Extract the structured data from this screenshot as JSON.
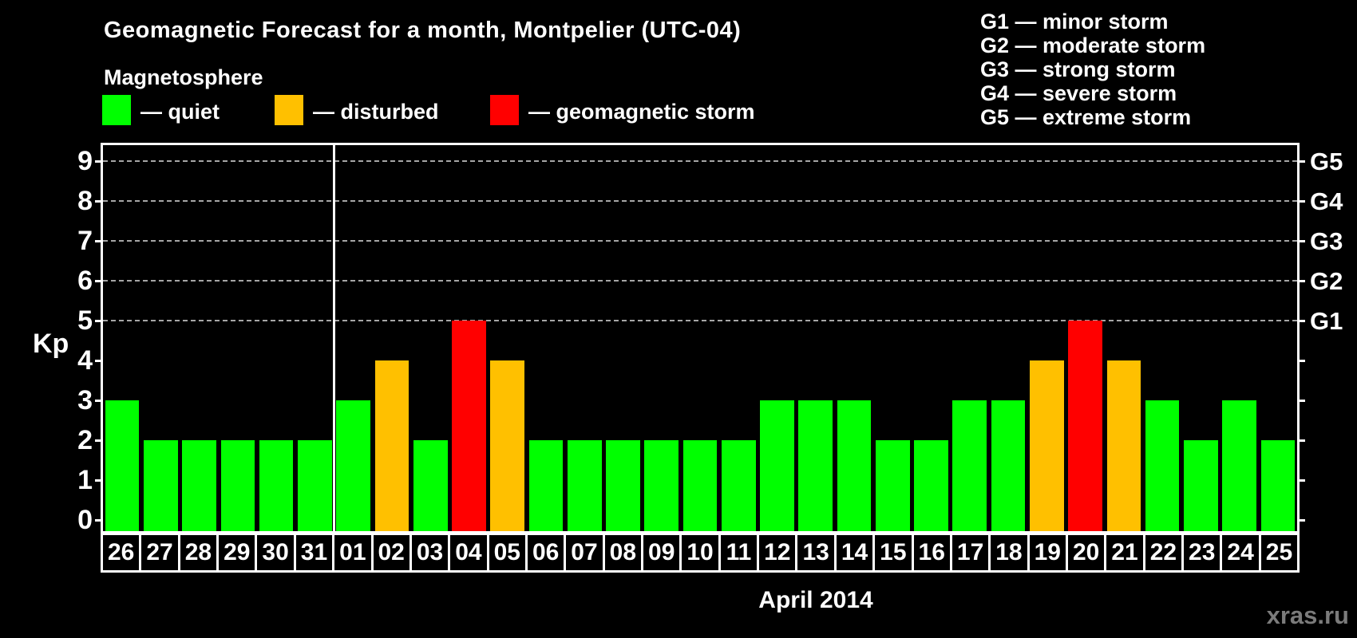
{
  "title": "Geomagnetic Forecast for a month, Montpelier (UTC-04)",
  "subtitle": "Magnetosphere",
  "legend": {
    "items": [
      {
        "label": "— quiet",
        "color": "#00ff00",
        "status": "quiet"
      },
      {
        "label": "— disturbed",
        "color": "#ffc000",
        "status": "disturbed"
      },
      {
        "label": "— geomagnetic storm",
        "color": "#ff0000",
        "status": "storm"
      }
    ]
  },
  "g_scale_legend": [
    "G1 — minor storm",
    "G2 — moderate storm",
    "G3 — strong storm",
    "G4 — severe storm",
    "G5 — extreme storm"
  ],
  "watermark": "xras.ru",
  "chart_data": {
    "type": "bar",
    "title": "Geomagnetic Forecast for a month, Montpelier (UTC-04)",
    "xlabel": "April 2014",
    "ylabel": "Kp",
    "ylim": [
      0,
      9
    ],
    "yticks": [
      0,
      1,
      2,
      3,
      4,
      5,
      6,
      7,
      8,
      9
    ],
    "gridlines_at": [
      5,
      6,
      7,
      8,
      9
    ],
    "grid_style": "dashed horizontal lines at Kp 5-9 only",
    "right_axis_labels": {
      "5": "G1",
      "6": "G2",
      "7": "G3",
      "8": "G4",
      "9": "G5"
    },
    "legend_position": "top",
    "categories": [
      "26",
      "27",
      "28",
      "29",
      "30",
      "31",
      "01",
      "02",
      "03",
      "04",
      "05",
      "06",
      "07",
      "08",
      "09",
      "10",
      "11",
      "12",
      "13",
      "14",
      "15",
      "16",
      "17",
      "18",
      "19",
      "20",
      "21",
      "22",
      "23",
      "24",
      "25"
    ],
    "values": [
      3,
      2,
      2,
      2,
      2,
      2,
      3,
      4,
      2,
      5,
      4,
      2,
      2,
      2,
      2,
      2,
      2,
      3,
      3,
      3,
      2,
      2,
      3,
      3,
      4,
      5,
      4,
      3,
      2,
      3,
      2
    ],
    "statuses": [
      "quiet",
      "quiet",
      "quiet",
      "quiet",
      "quiet",
      "quiet",
      "quiet",
      "disturbed",
      "quiet",
      "storm",
      "disturbed",
      "quiet",
      "quiet",
      "quiet",
      "quiet",
      "quiet",
      "quiet",
      "quiet",
      "quiet",
      "quiet",
      "quiet",
      "quiet",
      "quiet",
      "quiet",
      "disturbed",
      "storm",
      "disturbed",
      "quiet",
      "quiet",
      "quiet",
      "quiet"
    ],
    "status_colors": {
      "quiet": "#00ff00",
      "disturbed": "#ffc000",
      "storm": "#ff0000"
    },
    "month_divider_after_index": 5
  }
}
